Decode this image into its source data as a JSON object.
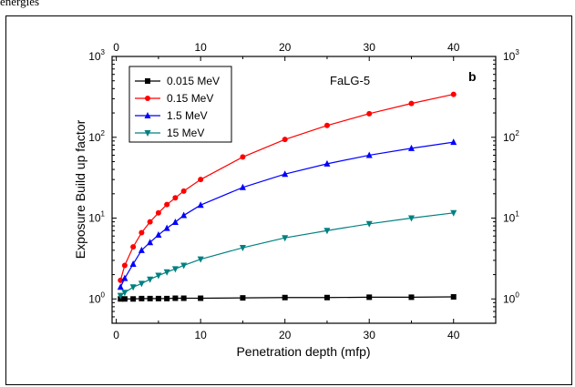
{
  "caption": "energies",
  "chart_data": {
    "type": "line",
    "annotation": "FaLG-5",
    "panel_label": "b",
    "xlabel": "Penetration depth (mfp)",
    "ylabel": "Exposure Build up factor",
    "xlim": [
      -0.5,
      45
    ],
    "ylim": [
      0.5,
      1000
    ],
    "yscale": "log",
    "x_ticks": [
      0,
      10,
      20,
      30,
      40
    ],
    "y_ticks": [
      {
        "value": 1,
        "base": "10",
        "exp": "0"
      },
      {
        "value": 10,
        "base": "10",
        "exp": "1"
      },
      {
        "value": 100,
        "base": "10",
        "exp": "2"
      },
      {
        "value": 1000,
        "base": "10",
        "exp": "3"
      }
    ],
    "mirror_axes": true,
    "grid": false,
    "legend_position": "top-left",
    "x": [
      0.5,
      1,
      2,
      3,
      4,
      5,
      6,
      7,
      8,
      10,
      15,
      20,
      25,
      30,
      35,
      40
    ],
    "series": [
      {
        "name": "0.015 MeV",
        "color": "#000000",
        "marker": "square",
        "values": [
          1.0,
          1.0,
          1.0,
          1.01,
          1.01,
          1.01,
          1.01,
          1.02,
          1.02,
          1.02,
          1.03,
          1.04,
          1.04,
          1.05,
          1.05,
          1.06
        ]
      },
      {
        "name": "0.15 MeV",
        "color": "#ff0000",
        "marker": "circle",
        "values": [
          1.7,
          2.6,
          4.4,
          6.6,
          9.0,
          11.6,
          14.7,
          17.8,
          21.6,
          30,
          57,
          94,
          140,
          196,
          262,
          340
        ]
      },
      {
        "name": "1.5 MeV",
        "color": "#0000ff",
        "marker": "triangle-up",
        "values": [
          1.4,
          1.8,
          2.7,
          4.0,
          5.0,
          6.2,
          7.5,
          8.9,
          10.8,
          14.5,
          24,
          35,
          47,
          60,
          73,
          87
        ]
      },
      {
        "name": "15  MeV",
        "color": "#008080",
        "marker": "triangle-down",
        "values": [
          1.1,
          1.2,
          1.4,
          1.55,
          1.75,
          1.95,
          2.15,
          2.35,
          2.6,
          3.1,
          4.3,
          5.7,
          7.0,
          8.5,
          10.0,
          11.6
        ]
      }
    ]
  }
}
